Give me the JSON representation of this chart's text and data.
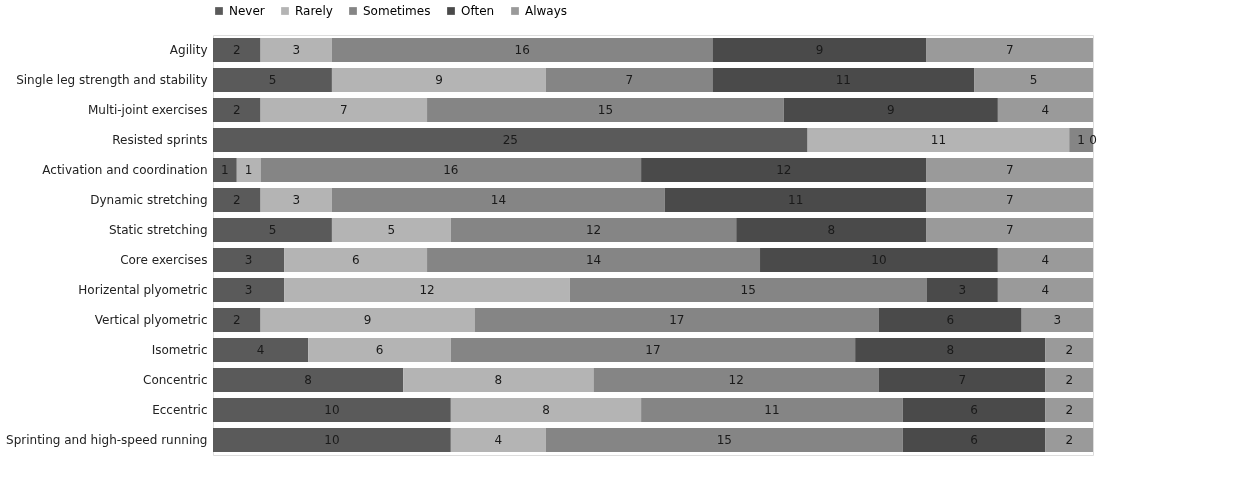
{
  "chart_data": {
    "type": "bar",
    "orientation": "horizontal",
    "stacked": true,
    "data_labels": true,
    "legend": "top",
    "grid": false,
    "tick_labels": "y",
    "categories": [
      "Agility",
      "Single leg strength and stability",
      "Multi-joint exercises",
      "Resisted sprints",
      "Activation and coordination",
      "Dynamic stretching",
      "Static stretching",
      "Core exercises",
      "Horizental plyometric",
      "Vertical plyometric",
      "Isometric",
      "Concentric",
      "Eccentric ",
      "Sprinting and high-speed running"
    ],
    "series": [
      {
        "name": "Never",
        "color": "#5a5a5a",
        "values": [
          2,
          5,
          2,
          25,
          1,
          2,
          5,
          3,
          3,
          2,
          4,
          8,
          10,
          10
        ]
      },
      {
        "name": "Rarely",
        "color": "#b4b4b4",
        "values": [
          3,
          9,
          7,
          11,
          1,
          3,
          5,
          6,
          12,
          9,
          6,
          8,
          8,
          4
        ]
      },
      {
        "name": "Sometimes",
        "color": "#858585",
        "values": [
          16,
          7,
          15,
          1,
          16,
          14,
          12,
          14,
          15,
          17,
          17,
          12,
          11,
          15
        ]
      },
      {
        "name": "Often",
        "color": "#4a4a4a",
        "values": [
          9,
          11,
          9,
          0,
          12,
          11,
          8,
          10,
          3,
          6,
          8,
          7,
          6,
          6
        ],
        "value_labels": [
          "9",
          "11",
          "9",
          null,
          "12",
          "11",
          "8",
          "10",
          "3",
          "6",
          "8",
          "7",
          "6",
          "6"
        ]
      },
      {
        "name": "Always",
        "color": "#9a9a9a",
        "values": [
          7,
          5,
          4,
          0,
          7,
          7,
          7,
          4,
          4,
          3,
          2,
          2,
          2,
          2
        ]
      }
    ]
  }
}
